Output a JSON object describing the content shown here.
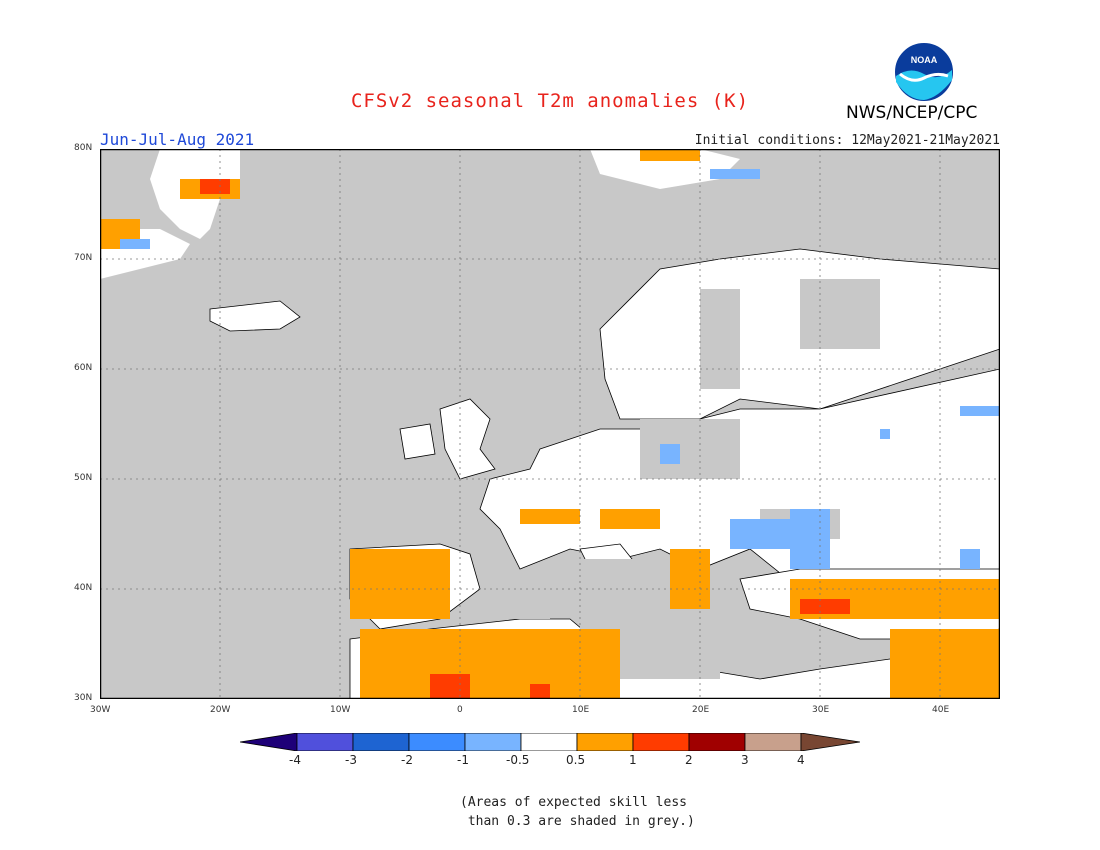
{
  "header": {
    "title": "CFSv2 seasonal T2m anomalies (K)",
    "period": "Jun-Jul-Aug 2021",
    "initial_conditions": "Initial conditions: 12May2021-21May2021",
    "agency": "NWS/NCEP/CPC",
    "logo_text": "NOAA"
  },
  "map": {
    "region": "Europe",
    "lon_range": [
      -30,
      45
    ],
    "lat_range": [
      30,
      80
    ],
    "lat_labels": [
      "80N",
      "70N",
      "60N",
      "50N",
      "40N",
      "30N"
    ],
    "lon_labels": [
      "30W",
      "20W",
      "10W",
      "0",
      "10E",
      "20E",
      "30E",
      "40E"
    ],
    "colors": {
      "ocean_low_skill": "#c8c8c8",
      "land_neutral": "#ffffff",
      "warm_0_5_1": "#ffa000",
      "warm_1_2": "#ff3c00",
      "warm_2_3": "#a00000",
      "cool_minus1_minus0_5": "#78b4ff",
      "cool_minus2_minus1": "#3c8cff"
    }
  },
  "colorbar": {
    "labels": [
      "-4",
      "-3",
      "-2",
      "-1",
      "-0.5",
      "0.5",
      "1",
      "2",
      "3",
      "4"
    ],
    "colors": [
      "#1e0078",
      "#5050dc",
      "#1e64d2",
      "#3c8cff",
      "#78b4ff",
      "#ffffff",
      "#ffa000",
      "#ff3c00",
      "#a00000",
      "#c8a08c",
      "#784632"
    ]
  },
  "footnote": "(Areas of expected skill less\n than 0.3 are shaded in grey.)"
}
